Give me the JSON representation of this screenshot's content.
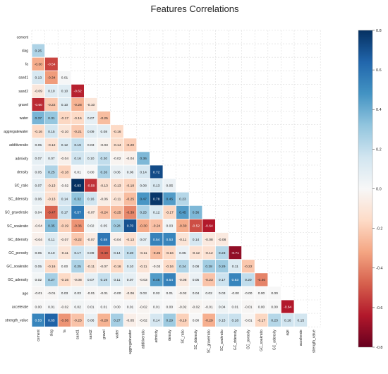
{
  "chart_data": {
    "type": "heatmap",
    "title": "Features Correlations",
    "labels": [
      "cement",
      "slag",
      "fa",
      "sand1",
      "sand2",
      "gravel",
      "water",
      "aggregatewater",
      "additiveratio",
      "admixity",
      "density",
      "SC_ratio",
      "SC_ddensity",
      "SC_gravelratio",
      "SC_soakratio",
      "GC_ddensity",
      "GC_porosity",
      "GC_soakratio",
      "GC_adensity",
      "age",
      "accelerate",
      "strength_value"
    ],
    "matrix": [
      [],
      [
        0.25
      ],
      [
        -0.3,
        -0.54
      ],
      [
        0.13,
        -0.34,
        0.01
      ],
      [
        -0.09,
        0.1,
        0.1,
        -0.62
      ],
      [
        -0.6,
        -0.22,
        0.1,
        -0.28,
        -0.1
      ],
      [
        0.37,
        0.31,
        -0.17,
        -0.16,
        0.07,
        -0.25
      ],
      [
        -0.16,
        0.15,
        -0.1,
        -0.21,
        0.09,
        0.08,
        -0.16
      ],
      [
        0.05,
        -0.12,
        0.12,
        0.19,
        0.03,
        -0.03,
        -0.14,
        -0.2
      ],
      [
        0.07,
        0.07,
        -0.04,
        0.16,
        0.1,
        0.2,
        -0.02,
        -0.04,
        0.36
      ],
      [
        0.05,
        0.25,
        -0.18,
        0.01,
        0.0,
        0.26,
        0.06,
        0.06,
        0.14,
        0.72
      ],
      [
        0.07,
        -0.13,
        -0.02,
        0.83,
        -0.58,
        -0.13,
        -0.13,
        -0.18,
        0.08,
        0.13,
        0.05
      ],
      [
        0.06,
        -0.13,
        0.14,
        0.32,
        0.16,
        -0.06,
        -0.11,
        -0.25,
        0.47,
        0.78,
        0.45,
        0.23
      ],
      [
        0.04,
        -0.47,
        0.17,
        0.57,
        -0.07,
        -0.24,
        -0.25,
        -0.39,
        0.25,
        0.12,
        -0.17,
        0.45,
        0.36
      ],
      [
        -0.04,
        0.35,
        -0.19,
        -0.36,
        0.02,
        0.05,
        0.28,
        0.7,
        -0.3,
        -0.24,
        0.03,
        -0.3,
        -0.52,
        -0.64
      ],
      [
        -0.04,
        0.11,
        -0.07,
        -0.22,
        -0.07,
        0.58,
        -0.04,
        -0.13,
        0.07,
        0.54,
        0.53,
        -0.11,
        0.14,
        -0.08,
        -0.08
      ],
      [
        0.05,
        0.1,
        -0.11,
        0.17,
        0.09,
        -0.49,
        0.14,
        0.2,
        -0.11,
        -0.25,
        -0.16,
        0.05,
        -0.12,
        -0.12,
        0.23,
        -0.71
      ],
      [
        0.05,
        -0.16,
        0.0,
        0.25,
        -0.11,
        -0.07,
        -0.16,
        0.1,
        -0.11,
        -0.03,
        -0.16,
        0.24,
        0.08,
        0.28,
        0.29,
        0.11,
        -0.22
      ],
      [
        0.02,
        0.27,
        -0.16,
        -0.08,
        0.07,
        0.19,
        0.11,
        0.07,
        -0.03,
        0.45,
        0.54,
        -0.08,
        0.05,
        -0.23,
        0.17,
        0.53,
        0.2,
        -0.4
      ],
      [
        -0.01,
        -0.01,
        0.03,
        0.03,
        -0.01,
        -0.01,
        -0.0,
        -0.06,
        0.03,
        0.02,
        0.01,
        -0.02,
        0.04,
        0.02,
        0.03,
        -0.0,
        -0.0,
        0.0,
        0.0
      ],
      [
        0.0,
        0.01,
        -0.02,
        0.02,
        0.01,
        0.01,
        0.0,
        0.01,
        -0.02,
        0.01,
        0.0,
        -0.02,
        -0.02,
        -0.01,
        0.04,
        0.01,
        -0.01,
        0.0,
        0.0,
        -0.64
      ],
      [
        0.53,
        0.65,
        -0.36,
        -0.23,
        0.06,
        -0.28,
        0.27,
        -0.05,
        -0.02,
        0.14,
        0.29,
        -0.19,
        0.0,
        -0.29,
        0.15,
        0.18,
        -0.01,
        -0.17,
        0.23,
        0.16,
        0.15
      ]
    ],
    "vmin": -0.8,
    "vmax": 0.8,
    "colorbar_ticks": [
      "0.8",
      "0.6",
      "0.4",
      "0.2",
      "0.0",
      "-0.2",
      "-0.4",
      "-0.6",
      "-0.8"
    ],
    "colormap": "RdBu",
    "grid": true,
    "legend": "colorbar right"
  }
}
